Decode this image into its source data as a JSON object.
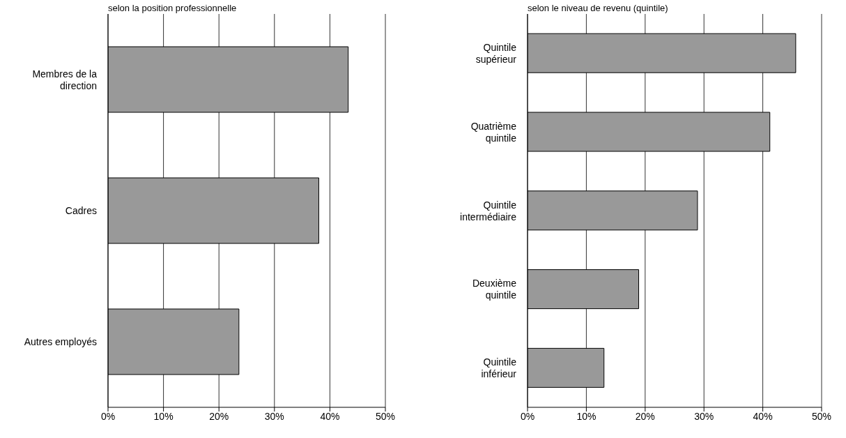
{
  "chart_data": [
    {
      "type": "bar",
      "orientation": "horizontal",
      "title": "selon la position professionnelle",
      "categories": [
        "Membres de la\ndirection",
        "Cadres",
        "Autres employés"
      ],
      "values": [
        43.3,
        38.0,
        23.6
      ],
      "color": "#999999",
      "xlim": [
        0,
        50
      ],
      "xticks": [
        {
          "value": 0,
          "label": "0%"
        },
        {
          "value": 10,
          "label": "10%"
        },
        {
          "value": 20,
          "label": "20%"
        },
        {
          "value": 30,
          "label": "30%"
        },
        {
          "value": 40,
          "label": "40%"
        },
        {
          "value": 50,
          "label": "50%"
        }
      ],
      "grid": "x"
    },
    {
      "type": "bar",
      "orientation": "horizontal",
      "title": "selon le niveau de revenu (quintile)",
      "categories": [
        "Quintile\nsupérieur",
        "Quatrième\nquintile",
        "Quintile\nintermédiaire",
        "Deuxième\nquintile",
        "Quintile\ninférieur"
      ],
      "values": [
        45.6,
        41.2,
        28.9,
        18.9,
        13.0
      ],
      "color": "#999999",
      "xlim": [
        0,
        50
      ],
      "xticks": [
        {
          "value": 0,
          "label": "0%"
        },
        {
          "value": 10,
          "label": "10%"
        },
        {
          "value": 20,
          "label": "20%"
        },
        {
          "value": 30,
          "label": "30%"
        },
        {
          "value": 40,
          "label": "40%"
        },
        {
          "value": 50,
          "label": "50%"
        }
      ],
      "grid": "x"
    }
  ]
}
